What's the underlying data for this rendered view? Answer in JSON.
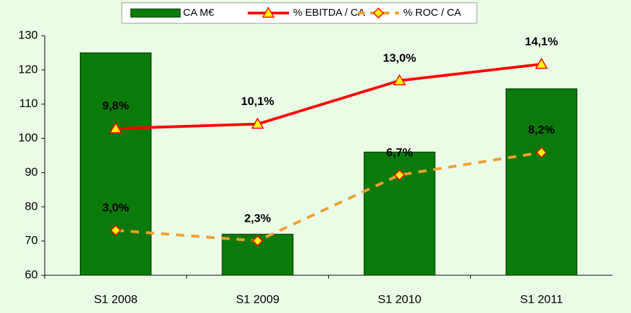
{
  "chart_data": {
    "type": "combo",
    "categories": [
      "S1 2008",
      "S1 2009",
      "S1 2010",
      "S1 2011"
    ],
    "ylim": [
      60,
      130
    ],
    "yticks": [
      60,
      70,
      80,
      90,
      100,
      110,
      120,
      130
    ],
    "y2lim": [
      0,
      16
    ],
    "series": [
      {
        "name": "CA M€",
        "type": "bar",
        "color": "#0a7a0a",
        "values": [
          125,
          72,
          96,
          114.5
        ]
      },
      {
        "name": "% EBITDA / CA",
        "type": "line",
        "axis": "y2",
        "color": "#ff0000",
        "marker": "triangle",
        "dashed": false,
        "values": [
          9.8,
          10.1,
          13.0,
          14.1
        ],
        "value_labels": [
          "9,8%",
          "10,1%",
          "13,0%",
          "14,1%"
        ]
      },
      {
        "name": "% ROC / CA",
        "type": "line",
        "axis": "y2",
        "color": "#f0a030",
        "marker": "diamond",
        "dashed": true,
        "values": [
          3.0,
          2.3,
          6.7,
          8.2
        ],
        "value_labels": [
          "3,0%",
          "2,3%",
          "6,7%",
          "8,2%"
        ]
      }
    ]
  }
}
